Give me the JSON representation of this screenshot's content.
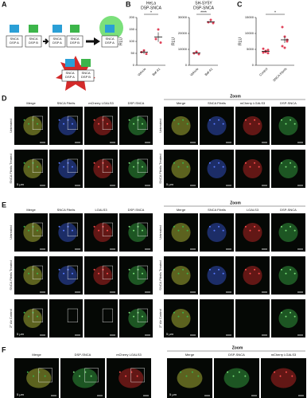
{
  "panel_letters": [
    "A",
    "B",
    "C",
    "D",
    "E",
    "F"
  ],
  "diagram": {
    "monomer_a": [
      "SNCA",
      "DSP A"
    ],
    "monomer_b": [
      "SNCA",
      "DSP B"
    ]
  },
  "chart_data": [
    {
      "type": "dot",
      "title": [
        "HeLa",
        "DSP-SNCA"
      ],
      "ylabel": "RLU",
      "categories": [
        "Vehicle",
        "Baf-A1"
      ],
      "values": [
        [
          55,
          62,
          48
        ],
        [
          110,
          150,
          95
        ]
      ],
      "means": [
        55,
        118
      ],
      "errors": [
        8,
        20
      ],
      "ylim": [
        0,
        200
      ],
      "yticks": [
        0,
        50,
        100,
        150,
        200
      ],
      "significance": "*",
      "color": "#e0435a"
    },
    {
      "type": "dot",
      "title": [
        "SH-SY5Y",
        "DSP-SNCA"
      ],
      "ylabel": "RLU",
      "categories": [
        "Vehicle",
        "Baf-A1"
      ],
      "values": [
        [
          7500,
          8500,
          7000
        ],
        [
          27000,
          28500,
          26500
        ]
      ],
      "means": [
        7700,
        27300
      ],
      "errors": [
        500,
        700
      ],
      "ylim": [
        0,
        30000
      ],
      "yticks": [
        0,
        10000,
        20000,
        30000
      ],
      "significance": "****",
      "color": "#e0435a"
    },
    {
      "type": "dot",
      "title": [],
      "ylabel": "RLU",
      "categories": [
        "Control",
        "SNCA Fibrils"
      ],
      "values": [
        [
          4000,
          4500,
          3800,
          5200,
          4200,
          4800
        ],
        [
          6000,
          9000,
          7500,
          12000,
          5500,
          8000
        ]
      ],
      "means": [
        4400,
        8000
      ],
      "errors": [
        300,
        1000
      ],
      "ylim": [
        0,
        15000
      ],
      "yticks": [
        0,
        5000,
        10000,
        15000
      ],
      "significance": "*",
      "color": "#e0435a"
    }
  ],
  "microscopy": [
    {
      "columns": [
        "Merge",
        "SNCA Fibrils",
        "mCherry LGALS3",
        "DSP-SNCA"
      ],
      "zoom_title": "Zoom",
      "rows": [
        "Untreated",
        "SNCA Fibrils Treated"
      ],
      "scale": "5 μm"
    },
    {
      "columns": [
        "Merge",
        "SNCA Fibrils",
        "LGALS3",
        "DSP-SNCA"
      ],
      "zoom_title": "Zoom",
      "rows": [
        "Untreated",
        "SNCA Fibrils Treated",
        "2° Ab Control"
      ],
      "scale": "5 μm"
    },
    {
      "columns": [
        "Merge",
        "DSP-SNCA",
        "mCherry LGALS3"
      ],
      "zoom_title": "Zoom",
      "rows": [],
      "scale": "5 μm"
    }
  ]
}
